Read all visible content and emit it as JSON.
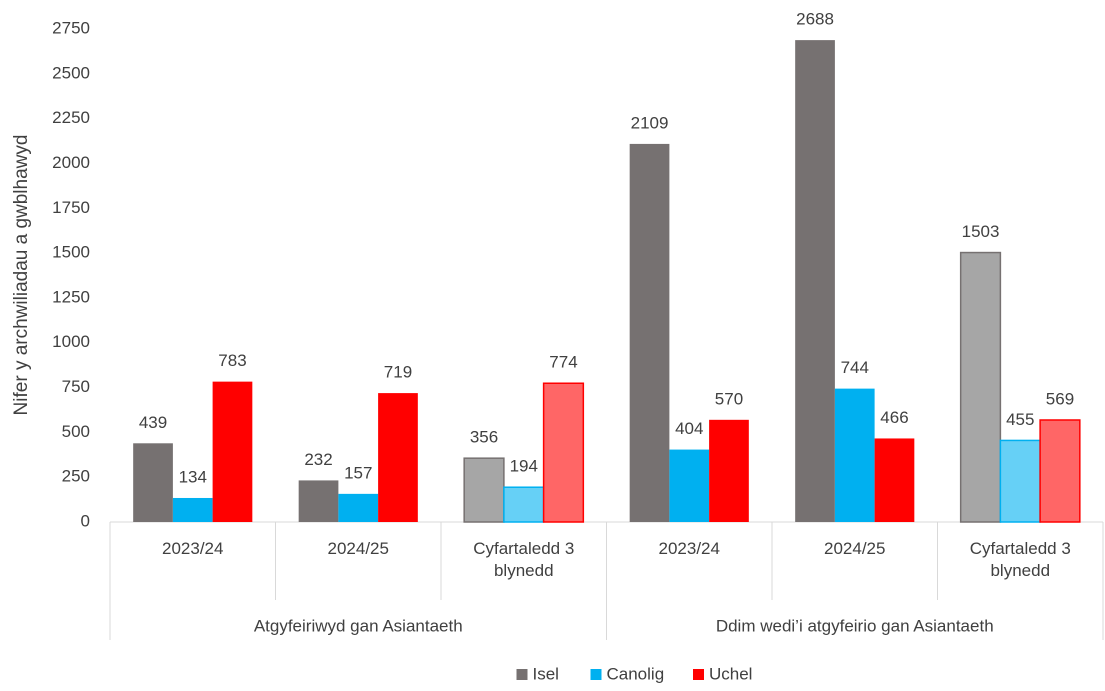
{
  "chart_data": {
    "type": "bar",
    "y_label": "Nifer y archwiliadau a gwblhawyd",
    "categories": [
      "2023/24",
      "2024/25",
      "Cyfartaledd 3 blynedd",
      "2023/24",
      "2024/25",
      "Cyfartaledd 3 blynedd"
    ],
    "groups": [
      "Atgyfeiriwyd gan Asiantaeth",
      "Ddim wedi’i atgyfeirio gan Asiantaeth"
    ],
    "series": [
      {
        "name": "Isel",
        "color": "#767171",
        "colors": [
          "#767171",
          "#767171",
          "#a6a6a6",
          "#767171",
          "#767171",
          "#a6a6a6"
        ],
        "values": [
          439,
          232,
          356,
          2109,
          2688,
          1503
        ]
      },
      {
        "name": "Canolig",
        "color": "#00b0f0",
        "colors": [
          "#00b0f0",
          "#00b0f0",
          "#66d0f6",
          "#00b0f0",
          "#00b0f0",
          "#66d0f6"
        ],
        "values": [
          134,
          157,
          194,
          404,
          744,
          455
        ]
      },
      {
        "name": "Uchel",
        "color": "#ff0000",
        "colors": [
          "#ff0000",
          "#ff0000",
          "#ff6666",
          "#ff0000",
          "#ff0000",
          "#ff6666"
        ],
        "values": [
          783,
          719,
          774,
          570,
          466,
          569
        ]
      }
    ],
    "ylim": [
      0,
      2750
    ],
    "yticks": [
      0,
      250,
      500,
      750,
      1000,
      1250,
      1500,
      1750,
      2000,
      2250,
      2500,
      2750
    ],
    "grid": false,
    "legend": "bottom"
  }
}
